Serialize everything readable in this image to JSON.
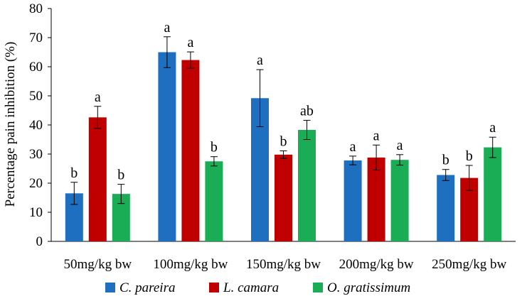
{
  "chart_data": {
    "type": "bar",
    "title": "",
    "xlabel": "",
    "ylabel": "Percentage pain inhibition (%)",
    "ylim": [
      0,
      80
    ],
    "yticks": [
      0,
      10,
      20,
      30,
      40,
      50,
      60,
      70,
      80
    ],
    "grid": false,
    "legend_position": "bottom",
    "categories": [
      "50mg/kg bw",
      "100mg/kg bw",
      "150mg/kg bw",
      "200mg/kg bw",
      "250mg/kg bw"
    ],
    "series": [
      {
        "name": "C. pareira",
        "color": "#1f6fc1",
        "values": [
          16.5,
          65,
          49.2,
          27.8,
          22.8
        ],
        "errors": [
          3.8,
          5.3,
          9.8,
          1.5,
          1.9
        ],
        "labels": [
          "b",
          "a",
          "a",
          "a",
          "b"
        ]
      },
      {
        "name": "L. camara",
        "color": "#c00000",
        "values": [
          42.6,
          62.3,
          29.8,
          28.8,
          21.8
        ],
        "errors": [
          3.8,
          2.8,
          1.3,
          4.3,
          4.3
        ],
        "labels": [
          "a",
          "a",
          "b",
          "a",
          "b"
        ]
      },
      {
        "name": "O. gratissimum",
        "color": "#1aad55",
        "values": [
          16.3,
          27.5,
          38.3,
          28,
          32.3
        ],
        "errors": [
          3.3,
          1.6,
          3.3,
          1.8,
          3.5
        ],
        "labels": [
          "b",
          "b",
          "ab",
          "a",
          "a"
        ]
      }
    ]
  }
}
